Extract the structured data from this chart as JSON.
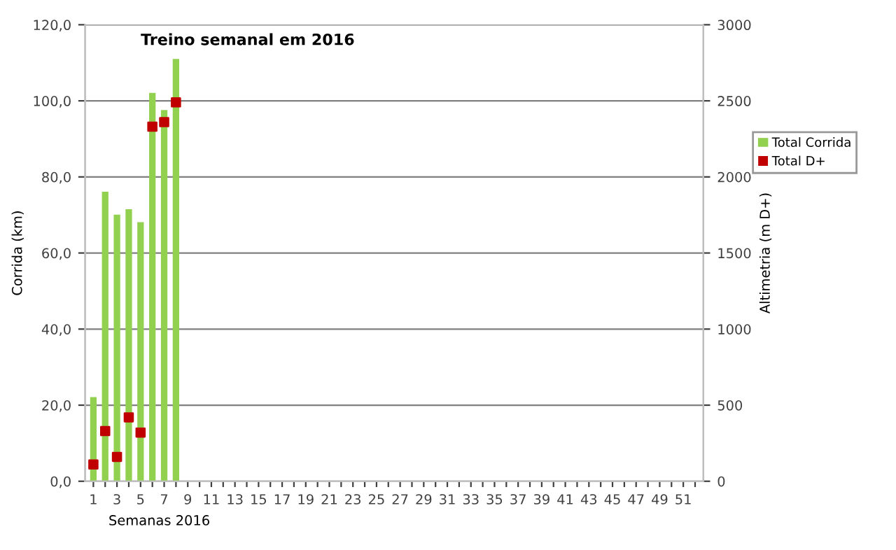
{
  "chart_data": {
    "type": "bar",
    "title": "Treino semanal em 2016",
    "xlabel": "Semanas 2016",
    "ylabel": "Corrida (km)",
    "y2label": "Altimetria (m D+)",
    "categories": [
      "1",
      null,
      "3",
      null,
      "5",
      null,
      "7",
      null,
      "9",
      null,
      "11",
      null,
      "13",
      null,
      "15",
      null,
      "17",
      null,
      "19",
      null,
      "21",
      null,
      "23",
      null,
      "25",
      null,
      "27",
      null,
      "29",
      null,
      "31",
      null,
      "33",
      null,
      "35",
      null,
      "37",
      null,
      "39",
      null,
      "41",
      null,
      "43",
      null,
      "45",
      null,
      "47",
      null,
      "49",
      null,
      "51",
      null
    ],
    "series": [
      {
        "name": "Total Corrida",
        "color": "#92d050",
        "values": [
          22.1,
          76.1,
          70.1,
          71.5,
          68.1,
          102.1,
          97.6,
          111.0,
          null,
          null,
          null,
          null,
          null,
          null,
          null,
          null,
          null,
          null,
          null,
          null,
          null,
          null,
          null,
          null,
          null,
          null,
          null,
          null,
          null,
          null,
          null,
          null,
          null,
          null,
          null,
          null,
          null,
          null,
          null,
          null,
          null,
          null,
          null,
          null,
          null,
          null,
          null,
          null,
          null,
          null,
          null,
          null
        ]
      },
      {
        "name": "Total D+",
        "type": "scatter",
        "axis": "y2",
        "marker": "square",
        "color": "#c00000",
        "values": [
          110,
          330,
          160,
          420,
          320,
          2330,
          2360,
          2490,
          null,
          null,
          null,
          null,
          null,
          null,
          null,
          null,
          null,
          null,
          null,
          null,
          null,
          null,
          null,
          null,
          null,
          null,
          null,
          null,
          null,
          null,
          null,
          null,
          null,
          null,
          null,
          null,
          null,
          null,
          null,
          null,
          null,
          null,
          null,
          null,
          null,
          null,
          null,
          null,
          null,
          null,
          null,
          null
        ]
      }
    ],
    "ylim": [
      0,
      120
    ],
    "yticks": [
      {
        "value": 0,
        "label": "0,0"
      },
      {
        "value": 20,
        "label": "20,0"
      },
      {
        "value": 40,
        "label": "40,0"
      },
      {
        "value": 60,
        "label": "60,0"
      },
      {
        "value": 80,
        "label": "80,0"
      },
      {
        "value": 100,
        "label": "100,0"
      },
      {
        "value": 120,
        "label": "120,0"
      }
    ],
    "y2lim": [
      0,
      3000
    ],
    "y2ticks": [
      0,
      500,
      1000,
      1500,
      2000,
      2500,
      3000
    ],
    "grid": "y",
    "legend": "right"
  }
}
